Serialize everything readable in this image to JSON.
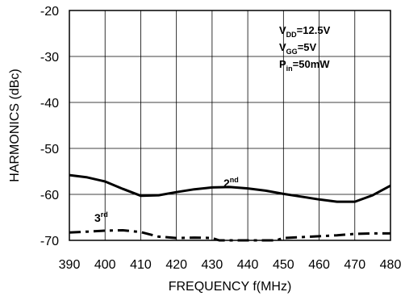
{
  "chart_data": {
    "type": "line",
    "xlabel": "FREQUENCY f(MHz)",
    "ylabel": "HARMONICS (dBc)",
    "xlim": [
      390,
      480
    ],
    "ylim": [
      -70,
      -20
    ],
    "x_ticks": [
      "390",
      "400",
      "410",
      "420",
      "430",
      "440",
      "450",
      "460",
      "470",
      "480"
    ],
    "y_ticks": [
      "-20",
      "-30",
      "-40",
      "-50",
      "-60",
      "-70"
    ],
    "grid": true,
    "conditions": [
      {
        "main": "V",
        "sub": "DD",
        "value": "=12.5V"
      },
      {
        "main": "V",
        "sub": "GG",
        "value": "=5V"
      },
      {
        "main": "P",
        "sub": "in",
        "value": "=50mW"
      }
    ],
    "series": [
      {
        "name": "2nd",
        "label_main": "2",
        "label_sup": "nd",
        "style": "solid",
        "x": [
          390,
          395,
          400,
          405,
          410,
          415,
          420,
          425,
          430,
          435,
          440,
          445,
          450,
          455,
          460,
          465,
          470,
          475,
          480
        ],
        "y": [
          -55.8,
          -56.3,
          -57.2,
          -58.8,
          -60.3,
          -60.2,
          -59.5,
          -58.9,
          -58.5,
          -58.4,
          -58.7,
          -59.2,
          -59.9,
          -60.5,
          -61.1,
          -61.6,
          -61.6,
          -60.2,
          -58.1
        ]
      },
      {
        "name": "3rd",
        "label_main": "3",
        "label_sup": "rd",
        "style": "dashdot",
        "x": [
          390,
          395,
          400,
          405,
          410,
          415,
          420,
          425,
          430,
          432,
          448,
          450,
          455,
          460,
          465,
          470,
          475,
          480
        ],
        "y": [
          -68.3,
          -68.1,
          -67.9,
          -67.8,
          -68.2,
          -69.2,
          -69.5,
          -69.4,
          -69.5,
          -70.0,
          -70.0,
          -69.5,
          -69.3,
          -69.1,
          -68.9,
          -68.6,
          -68.5,
          -68.5
        ]
      }
    ]
  }
}
